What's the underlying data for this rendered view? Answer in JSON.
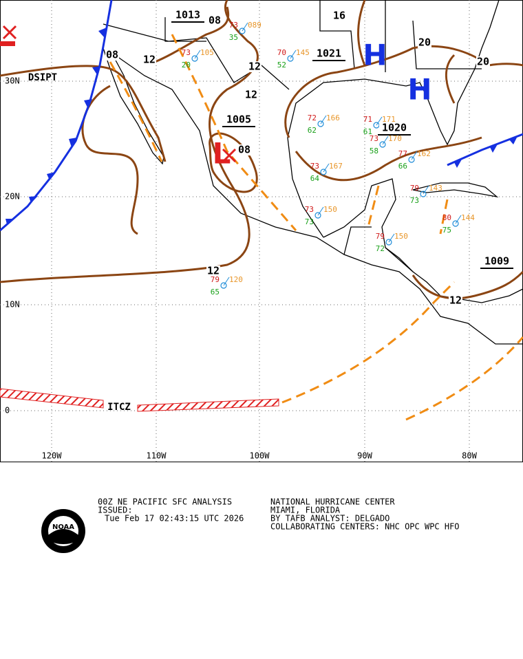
{
  "map": {
    "lat_labels": [
      "30N",
      "20N",
      "10N",
      "0"
    ],
    "lon_labels": [
      "120W",
      "110W",
      "100W",
      "90W",
      "80W"
    ],
    "isobar_labels": [
      "1013",
      "08",
      "16",
      "1021",
      "1020",
      "1005",
      "08",
      "08",
      "12",
      "12",
      "12",
      "20",
      "20",
      "12",
      "12",
      "1009"
    ],
    "centers": [
      {
        "symbol": "H"
      },
      {
        "symbol": "H"
      },
      {
        "symbol": "L"
      }
    ],
    "feature_labels": [
      "DSIPT",
      "ITCZ"
    ],
    "stations": [
      {
        "temp": "73",
        "dew": "20",
        "pressure": "105"
      },
      {
        "temp": "79",
        "dew": "65",
        "pressure": "120"
      },
      {
        "temp": "73",
        "dew": "64",
        "pressure": "167"
      },
      {
        "temp": "73",
        "dew": "73",
        "pressure": "150"
      },
      {
        "temp": "73",
        "dew": "58",
        "pressure": "170"
      },
      {
        "temp": "77",
        "dew": "66",
        "pressure": "162"
      },
      {
        "temp": "79",
        "dew": "73",
        "pressure": "143"
      },
      {
        "temp": "79",
        "dew": "72",
        "pressure": "150"
      },
      {
        "temp": "80",
        "dew": "75",
        "pressure": "144"
      },
      {
        "temp": "72",
        "dew": "62",
        "pressure": "166"
      },
      {
        "temp": "71",
        "dew": "61",
        "pressure": "171"
      },
      {
        "temp": "73",
        "dew": "35",
        "pressure": "089"
      },
      {
        "temp": "70",
        "dew": "52",
        "pressure": "145"
      }
    ]
  },
  "footer": {
    "left": [
      "00Z NE PACIFIC SFC ANALYSIS",
      "ISSUED:",
      "Tue Feb 17 02:43:15 UTC 2026"
    ],
    "right": [
      "NATIONAL HURRICANE CENTER",
      "MIAMI, FLORIDA",
      "BY TAFB ANALYST: DELGADO",
      "COLLABORATING CENTERS: NHC OPC WPC HFO"
    ],
    "logo": "NOAA"
  }
}
